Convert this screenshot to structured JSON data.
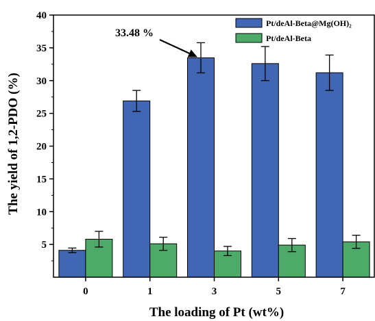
{
  "chart_data": {
    "type": "bar",
    "title": "",
    "xlabel": "The loading of Pt (wt%)",
    "ylabel": "The yield of 1,2-PDO (%)",
    "categories": [
      "0",
      "1",
      "3",
      "5",
      "7"
    ],
    "ylim": [
      0,
      40
    ],
    "yticks": [
      "5",
      "10",
      "15",
      "20",
      "25",
      "30",
      "35",
      "40"
    ],
    "grid": false,
    "legend_position": "top-right",
    "series": [
      {
        "name": "Pt/deAl-Beta@Mg(OH)₂",
        "color": "#4166b4",
        "values": [
          4.1,
          26.9,
          33.48,
          32.6,
          31.2
        ],
        "errors": [
          0.35,
          1.6,
          2.3,
          2.6,
          2.7
        ]
      },
      {
        "name": "Pt/deAl-Beta",
        "color": "#4daa68",
        "values": [
          5.8,
          5.1,
          4.0,
          4.9,
          5.4
        ],
        "errors": [
          1.2,
          1.0,
          0.7,
          1.0,
          1.0
        ]
      }
    ],
    "annotations": [
      {
        "text": "33.48 %",
        "points_to": {
          "series": 0,
          "category": "3"
        }
      }
    ]
  }
}
